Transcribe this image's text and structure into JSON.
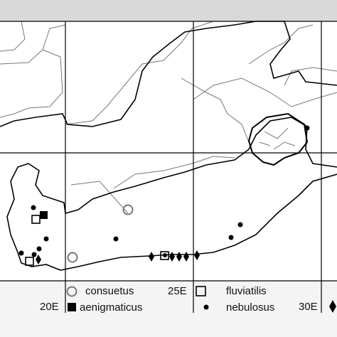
{
  "legend": [
    {
      "label": "consuetus"
    },
    {
      "label": "aenigmaticus"
    },
    {
      "label": "fluviatilis"
    },
    {
      "label": "nebulosus"
    }
  ],
  "longitudes": [
    "20E",
    "25E",
    "30E"
  ]
}
